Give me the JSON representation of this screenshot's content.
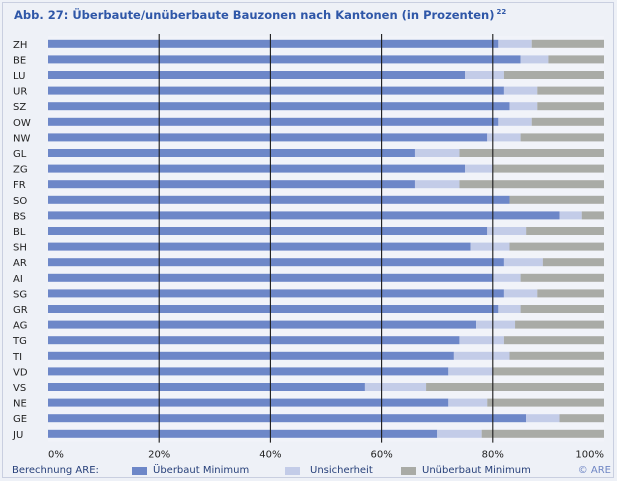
{
  "title": "Abb. 27: Überbaute/unüberbaute Bauzonen nach Kantonen (in Prozenten)",
  "title_footnote": "22",
  "legend": {
    "prefix": "Berechnung ARE:",
    "items": [
      {
        "label": "Überbaut Minimum",
        "color": "#6d87c8"
      },
      {
        "label": "Unsicherheit",
        "color": "#c3cce8"
      },
      {
        "label": "Unüberbaut Minimum",
        "color": "#a9aba6"
      }
    ],
    "credit": "© ARE"
  },
  "chart_data": {
    "type": "bar",
    "orientation": "horizontal",
    "stacked": true,
    "categories": [
      "ZH",
      "BE",
      "LU",
      "UR",
      "SZ",
      "OW",
      "NW",
      "GL",
      "ZG",
      "FR",
      "SO",
      "BS",
      "BL",
      "SH",
      "AR",
      "AI",
      "SG",
      "GR",
      "AG",
      "TG",
      "TI",
      "VD",
      "VS",
      "NE",
      "GE",
      "JU"
    ],
    "x_ticks": [
      "0%",
      "20%",
      "40%",
      "60%",
      "80%",
      "100%"
    ],
    "xlim": [
      0,
      100
    ],
    "grid": "vertical",
    "series": [
      {
        "name": "Überbaut Minimum",
        "color": "#6d87c8",
        "values": [
          81,
          85,
          75,
          82,
          83,
          81,
          79,
          66,
          75,
          66,
          83,
          92,
          79,
          76,
          82,
          80,
          82,
          81,
          77,
          74,
          73,
          72,
          57,
          72,
          86,
          70
        ]
      },
      {
        "name": "Unsicherheit",
        "color": "#c3cce8",
        "values": [
          6,
          5,
          7,
          6,
          5,
          6,
          6,
          8,
          5,
          8,
          0,
          4,
          7,
          7,
          7,
          5,
          6,
          4,
          7,
          8,
          10,
          8,
          11,
          7,
          6,
          8
        ]
      },
      {
        "name": "Unüberbaut Minimum",
        "color": "#a9aba6",
        "values": [
          13,
          10,
          18,
          12,
          12,
          13,
          15,
          26,
          20,
          26,
          17,
          4,
          14,
          17,
          11,
          15,
          12,
          15,
          16,
          18,
          17,
          20,
          32,
          21,
          8,
          22
        ]
      }
    ]
  }
}
